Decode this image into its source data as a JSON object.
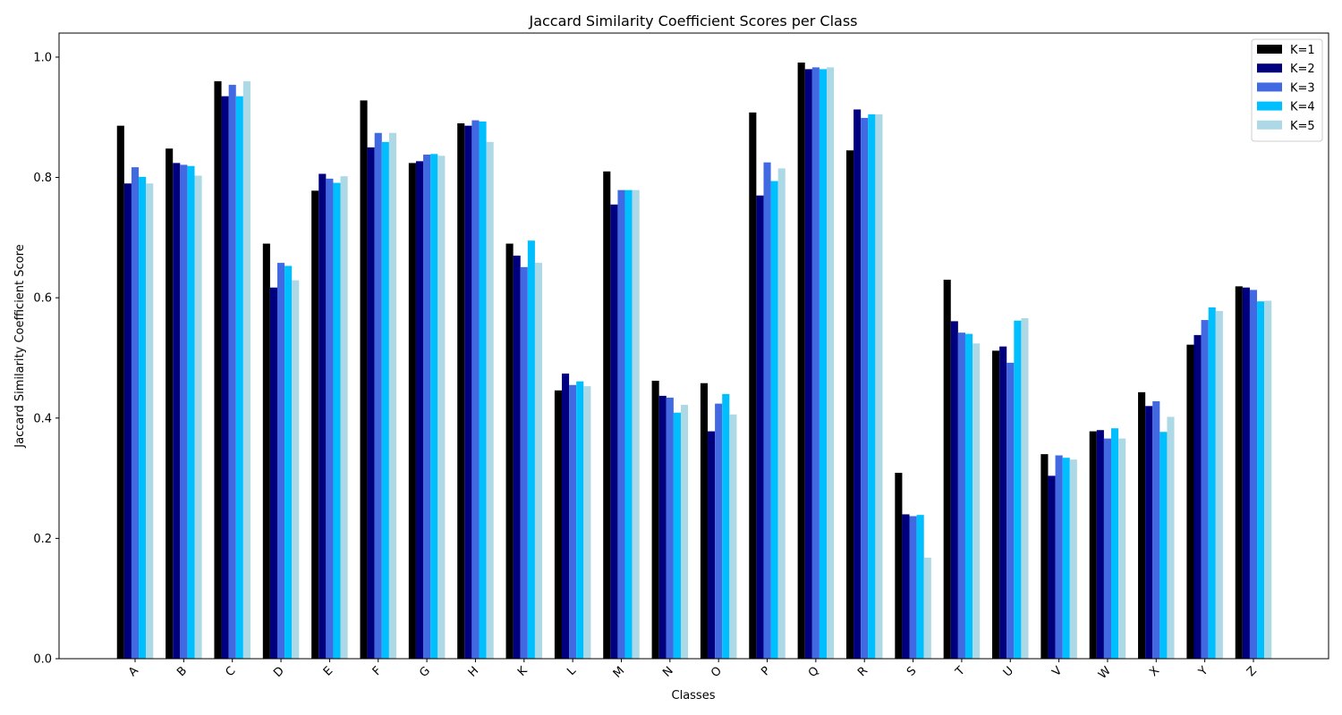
{
  "chart_data": {
    "type": "bar",
    "title": "Jaccard Similarity Coefficient Scores per Class",
    "xlabel": "Classes",
    "ylabel": "Jaccard Similarity Coefficient Score",
    "ylim": [
      0,
      1.04
    ],
    "yticks": [
      0.0,
      0.2,
      0.4,
      0.6,
      0.8,
      1.0
    ],
    "ytick_labels": [
      "0.0",
      "0.2",
      "0.4",
      "0.6",
      "0.8",
      "1.0"
    ],
    "grid": false,
    "legend_position": "top-right",
    "categories": [
      "A",
      "B",
      "C",
      "D",
      "E",
      "F",
      "G",
      "H",
      "K",
      "L",
      "M",
      "N",
      "O",
      "P",
      "Q",
      "R",
      "S",
      "T",
      "U",
      "V",
      "W",
      "X",
      "Y",
      "Z"
    ],
    "series": [
      {
        "name": "K=1",
        "color": "#000000",
        "values": [
          0.886,
          0.848,
          0.96,
          0.69,
          0.778,
          0.928,
          0.824,
          0.89,
          0.69,
          0.446,
          0.81,
          0.462,
          0.458,
          0.908,
          0.991,
          0.845,
          0.309,
          0.63,
          0.512,
          0.34,
          0.378,
          0.443,
          0.522,
          0.619
        ]
      },
      {
        "name": "K=2",
        "color": "#00007f",
        "values": [
          0.79,
          0.824,
          0.935,
          0.617,
          0.806,
          0.85,
          0.827,
          0.886,
          0.67,
          0.474,
          0.755,
          0.437,
          0.378,
          0.77,
          0.98,
          0.913,
          0.24,
          0.561,
          0.519,
          0.304,
          0.38,
          0.42,
          0.538,
          0.617
        ]
      },
      {
        "name": "K=3",
        "color": "#4169e1",
        "values": [
          0.817,
          0.821,
          0.954,
          0.658,
          0.798,
          0.874,
          0.838,
          0.895,
          0.651,
          0.455,
          0.779,
          0.434,
          0.424,
          0.825,
          0.983,
          0.899,
          0.237,
          0.542,
          0.492,
          0.338,
          0.366,
          0.428,
          0.563,
          0.613
        ]
      },
      {
        "name": "K=4",
        "color": "#00bfff",
        "values": [
          0.801,
          0.819,
          0.935,
          0.653,
          0.791,
          0.859,
          0.839,
          0.893,
          0.695,
          0.461,
          0.779,
          0.409,
          0.44,
          0.794,
          0.98,
          0.905,
          0.239,
          0.54,
          0.562,
          0.334,
          0.383,
          0.377,
          0.584,
          0.594
        ]
      },
      {
        "name": "K=5",
        "color": "#add8e6",
        "values": [
          0.79,
          0.803,
          0.96,
          0.629,
          0.802,
          0.874,
          0.836,
          0.859,
          0.658,
          0.453,
          0.779,
          0.422,
          0.406,
          0.815,
          0.983,
          0.905,
          0.168,
          0.524,
          0.566,
          0.331,
          0.366,
          0.402,
          0.578,
          0.595
        ]
      }
    ]
  }
}
